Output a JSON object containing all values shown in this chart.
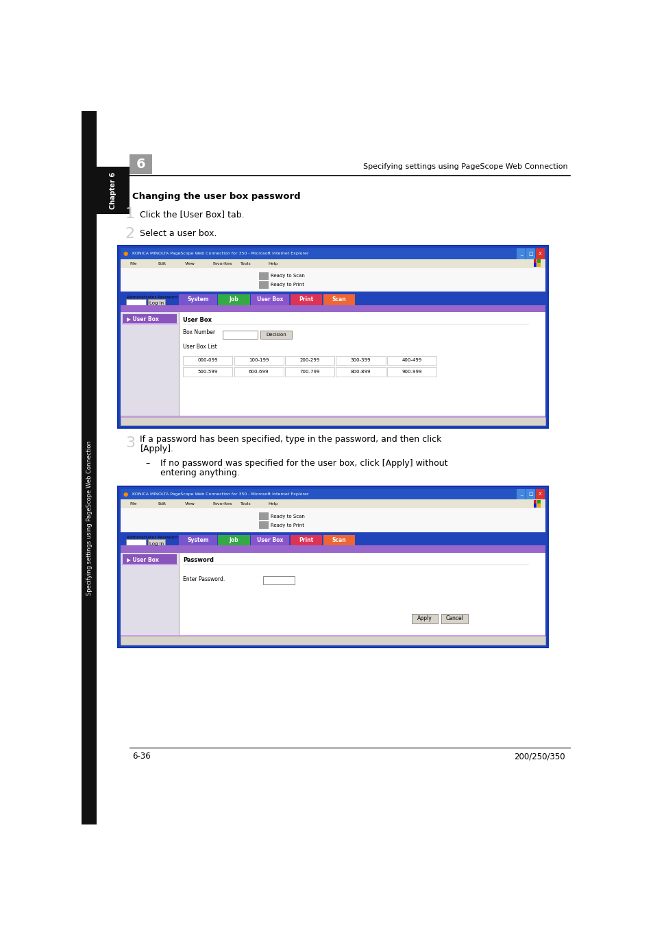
{
  "bg_color": "#ffffff",
  "page_width": 9.54,
  "page_height": 13.5,
  "header_text": "Specifying settings using PageScope Web Connection",
  "chapter_num": "6",
  "chapter_label": "Chapter 6",
  "sidebar_label": "Specifying settings using PageScope Web Connection",
  "section_title": "Changing the user box password",
  "step1_num": "1",
  "step1_text": "Click the [User Box] tab.",
  "step2_num": "2",
  "step2_text": "Select a user box.",
  "step3_num": "3",
  "step3_line1": "If a password has been specified, type in the password, and then click",
  "step3_line2": "[Apply].",
  "step3_sub1": "If no password was specified for the user box, click [Apply] without",
  "step3_sub2": "entering anything.",
  "footer_left": "6-36",
  "footer_right": "200/250/350",
  "title_bar_color": "#2455c3",
  "menu_bar_color": "#e8e4d4",
  "win_border_color": "#2244aa",
  "tab_system_color": "#7755cc",
  "tab_job_color": "#33aa44",
  "tab_userbox_color": "#8855cc",
  "tab_print_color": "#dd3355",
  "tab_scan_color": "#ee6633",
  "nav_bar_color": "#9966cc",
  "nav_panel_color": "#8855bb",
  "content_bg": "#ffffff",
  "win_bg": "#ffffff",
  "browser_title1": "KONICA MINOLTA PageScope Web Connection for 350 - Microsoft Internet Explorer",
  "row1": [
    "000-099",
    "100-199",
    "200-299",
    "300-399",
    "400-499"
  ],
  "row2": [
    "500-599",
    "600-699",
    "700-799",
    "800-899",
    "900-999"
  ]
}
